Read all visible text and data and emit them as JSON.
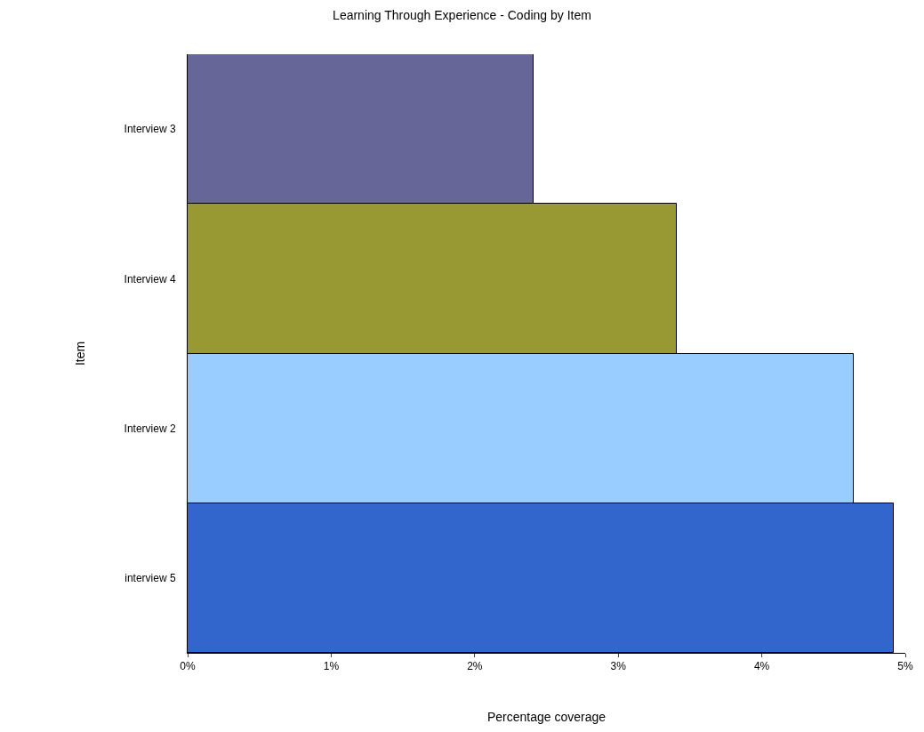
{
  "chart_data": {
    "type": "bar",
    "orientation": "horizontal",
    "title": "Learning Through Experience - Coding by Item",
    "xlabel": "Percentage coverage",
    "ylabel": "Item",
    "categories": [
      "Interview 3",
      "Interview 4",
      "Interview 2",
      "interview 5"
    ],
    "values": [
      2.41,
      3.41,
      4.64,
      4.92
    ],
    "colors": [
      "#666699",
      "#999933",
      "#99ccff",
      "#3366cc"
    ],
    "xlim": [
      0,
      5
    ],
    "xticks": [
      {
        "value": 0,
        "label": "0%"
      },
      {
        "value": 1,
        "label": "1%"
      },
      {
        "value": 2,
        "label": "2%"
      },
      {
        "value": 3,
        "label": "3%"
      },
      {
        "value": 4,
        "label": "4%"
      },
      {
        "value": 5,
        "label": "5%"
      }
    ],
    "legend": false
  }
}
